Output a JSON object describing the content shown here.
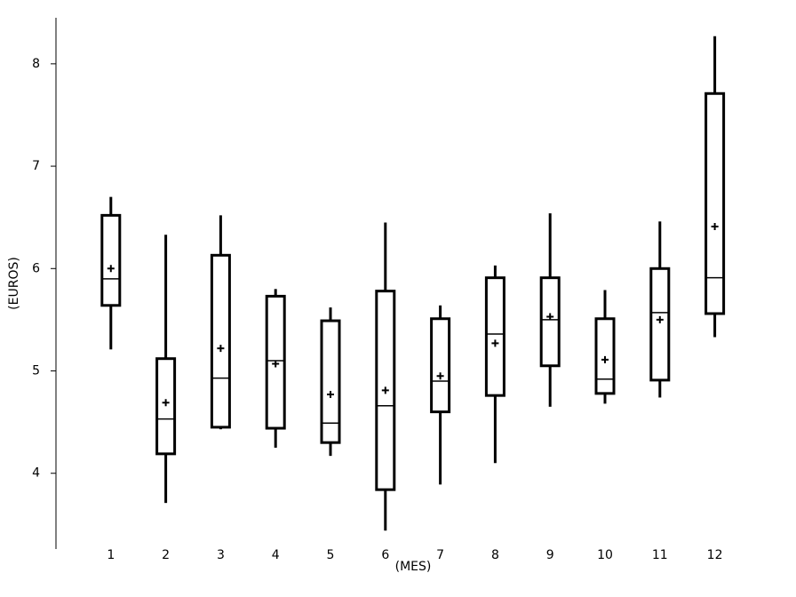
{
  "chart_data": {
    "type": "box",
    "x_label": "(MES)",
    "y_label": "(EUROS)",
    "categories": [
      "1",
      "2",
      "3",
      "4",
      "5",
      "6",
      "7",
      "8",
      "9",
      "10",
      "11",
      "12"
    ],
    "max": [
      6.7,
      6.33,
      6.52,
      5.8,
      5.62,
      6.45,
      5.64,
      6.03,
      6.54,
      5.79,
      6.46,
      8.27
    ],
    "q3": [
      6.52,
      5.12,
      6.13,
      5.73,
      5.49,
      5.78,
      5.51,
      5.91,
      5.91,
      5.51,
      6.0,
      7.71
    ],
    "median": [
      5.9,
      4.53,
      4.93,
      5.1,
      4.49,
      4.66,
      4.9,
      5.36,
      5.5,
      4.92,
      5.57,
      5.91
    ],
    "q1": [
      5.64,
      4.19,
      4.45,
      4.44,
      4.3,
      3.84,
      4.6,
      4.76,
      5.05,
      4.78,
      4.91,
      5.56
    ],
    "min": [
      5.21,
      3.71,
      4.43,
      4.25,
      4.17,
      3.44,
      3.89,
      4.1,
      4.65,
      4.68,
      4.74,
      5.33
    ],
    "mean": [
      6.0,
      4.69,
      5.22,
      5.07,
      4.77,
      4.81,
      4.95,
      5.27,
      5.53,
      5.11,
      5.5,
      6.41
    ],
    "color": "#000000",
    "ylim": [
      3.26,
      8.45
    ],
    "yticks": [
      4,
      5,
      6,
      7,
      8
    ],
    "grid": false
  }
}
